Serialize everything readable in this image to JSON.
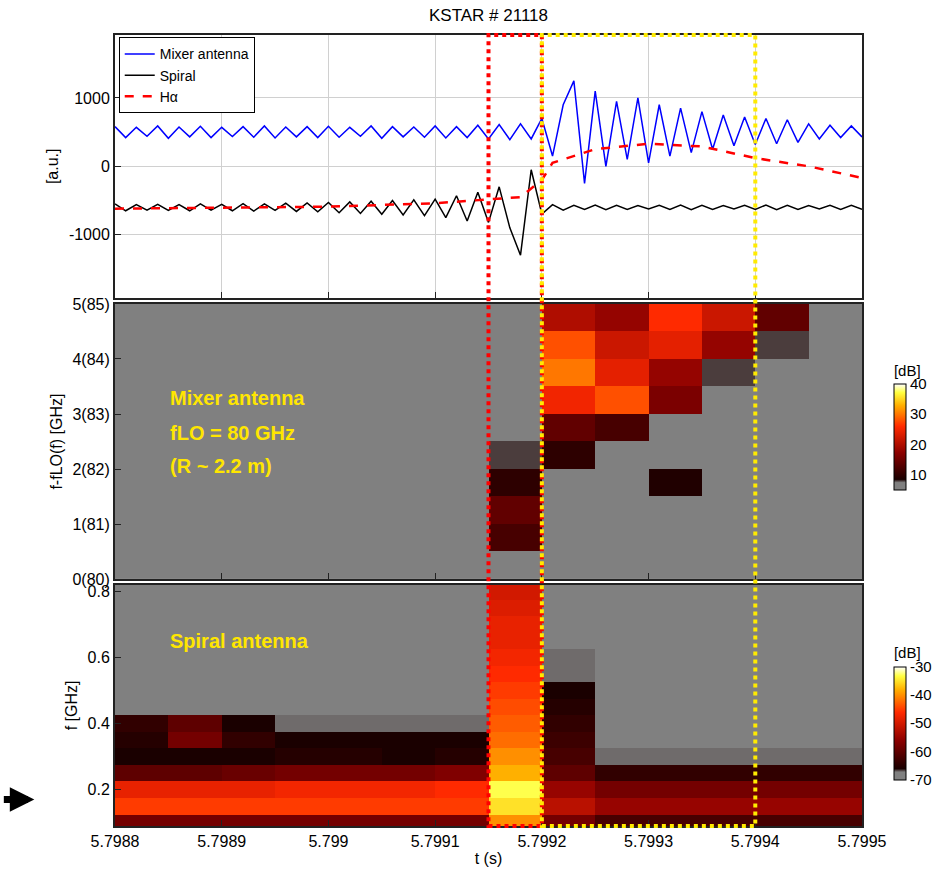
{
  "chart_data": [
    {
      "type": "line",
      "title": "KSTAR # 21118",
      "ylabel": "[a.u.]",
      "xlim": [
        5.7988,
        5.7995
      ],
      "xticks": [
        5.7988,
        5.7989,
        5.799,
        5.7991,
        5.7992,
        5.7993,
        5.7994,
        5.7995
      ],
      "ylim": [
        -1920,
        1920
      ],
      "yticks": [
        -1000,
        0,
        1000
      ],
      "grid": true,
      "legend": "top-left",
      "tick_labels": "y",
      "series": [
        {
          "name": "Mixer antenna",
          "color": "#0000ff",
          "line_style": "solid",
          "x": [
            5.7988,
            5.79881,
            5.79882,
            5.79883,
            5.79884,
            5.79885,
            5.79886,
            5.79887,
            5.79888,
            5.79889,
            5.7989,
            5.79891,
            5.79892,
            5.79893,
            5.79894,
            5.79895,
            5.79896,
            5.79897,
            5.79898,
            5.79899,
            5.799,
            5.79901,
            5.79902,
            5.79903,
            5.79904,
            5.79905,
            5.79906,
            5.79907,
            5.79908,
            5.79909,
            5.7991,
            5.79911,
            5.79912,
            5.79913,
            5.79914,
            5.79915,
            5.79916,
            5.79917,
            5.79918,
            5.79919,
            5.7992,
            5.79921,
            5.79922,
            5.79923,
            5.79924,
            5.79925,
            5.79926,
            5.79927,
            5.79928,
            5.79929,
            5.7993,
            5.79931,
            5.79932,
            5.79933,
            5.79934,
            5.79935,
            5.79936,
            5.79937,
            5.79938,
            5.79939,
            5.7994,
            5.79941,
            5.79942,
            5.79943,
            5.79944,
            5.79945,
            5.79946,
            5.79947,
            5.79948,
            5.79949,
            5.7995
          ],
          "values": [
            580,
            420,
            570,
            440,
            590,
            410,
            575,
            430,
            585,
            420,
            570,
            435,
            580,
            425,
            590,
            415,
            575,
            430,
            580,
            420,
            585,
            425,
            570,
            440,
            590,
            410,
            580,
            430,
            575,
            425,
            590,
            415,
            580,
            420,
            600,
            400,
            610,
            390,
            620,
            400,
            700,
            150,
            900,
            1250,
            -250,
            1100,
            0,
            950,
            100,
            1000,
            50,
            900,
            150,
            850,
            200,
            800,
            250,
            750,
            300,
            720,
            320,
            700,
            330,
            680,
            350,
            620,
            400,
            600,
            420,
            590,
            430
          ]
        },
        {
          "name": "Spiral",
          "color": "#000000",
          "line_style": "solid",
          "x": [
            5.7988,
            5.79881,
            5.79882,
            5.79883,
            5.79884,
            5.79885,
            5.79886,
            5.79887,
            5.79888,
            5.79889,
            5.7989,
            5.79891,
            5.79892,
            5.79893,
            5.79894,
            5.79895,
            5.79896,
            5.79897,
            5.79898,
            5.79899,
            5.799,
            5.79901,
            5.79902,
            5.79903,
            5.79904,
            5.79905,
            5.79906,
            5.79907,
            5.79908,
            5.79909,
            5.7991,
            5.79911,
            5.79912,
            5.79913,
            5.79914,
            5.79915,
            5.79916,
            5.79917,
            5.79918,
            5.79919,
            5.7992,
            5.79921,
            5.79922,
            5.79923,
            5.79924,
            5.79925,
            5.79926,
            5.79927,
            5.79928,
            5.79929,
            5.7993,
            5.79931,
            5.79932,
            5.79933,
            5.79934,
            5.79935,
            5.79936,
            5.79937,
            5.79938,
            5.79939,
            5.7994,
            5.79941,
            5.79942,
            5.79943,
            5.79944,
            5.79945,
            5.79946,
            5.79947,
            5.79948,
            5.79949,
            5.7995
          ],
          "values": [
            -550,
            -650,
            -560,
            -640,
            -555,
            -645,
            -560,
            -650,
            -550,
            -640,
            -555,
            -650,
            -545,
            -655,
            -550,
            -645,
            -540,
            -660,
            -535,
            -665,
            -530,
            -680,
            -520,
            -690,
            -510,
            -700,
            -500,
            -710,
            -490,
            -720,
            -480,
            -750,
            -430,
            -800,
            -380,
            -820,
            -300,
            -900,
            -1300,
            -50,
            -700,
            -560,
            -640,
            -570,
            -630,
            -565,
            -635,
            -570,
            -630,
            -575,
            -625,
            -570,
            -630,
            -565,
            -635,
            -570,
            -630,
            -575,
            -625,
            -570,
            -630,
            -565,
            -635,
            -570,
            -630,
            -575,
            -625,
            -570,
            -630,
            -570,
            -630
          ]
        },
        {
          "name": "Hα",
          "color": "#ff0000",
          "line_style": "dashed",
          "x": [
            5.7988,
            5.7989,
            5.799,
            5.7991,
            5.79915,
            5.79918,
            5.7992,
            5.79921,
            5.79925,
            5.7993,
            5.79935,
            5.7994,
            5.79945,
            5.7995
          ],
          "values": [
            -620,
            -610,
            -590,
            -540,
            -490,
            -450,
            -200,
            50,
            250,
            330,
            290,
            120,
            0,
            -170
          ]
        }
      ],
      "regions": [
        {
          "x0": 5.79915,
          "x1": 5.7992,
          "color": "#ff0000"
        },
        {
          "x0": 5.7992,
          "x1": 5.7994,
          "color": "#ffeb00"
        }
      ]
    },
    {
      "type": "heatmap",
      "ylabel": "f-fLO(f) [GHz]",
      "xlim": [
        5.7988,
        5.7995
      ],
      "xticks": [
        5.7988,
        5.7989,
        5.799,
        5.7991,
        5.7992,
        5.7993,
        5.7994,
        5.7995
      ],
      "ylim": [
        0,
        5
      ],
      "yticks": [
        {
          "value": 0,
          "label": "0(80)"
        },
        {
          "value": 1,
          "label": "1(81)"
        },
        {
          "value": 2,
          "label": "2(82)"
        },
        {
          "value": 3,
          "label": "3(83)"
        },
        {
          "value": 4,
          "label": "4(84)"
        },
        {
          "value": 5,
          "label": "5(85)"
        }
      ],
      "grid": true,
      "tick_labels": "y",
      "annotations": [
        {
          "x": 5.79885,
          "y": 3.3,
          "text": "Mixer antenna",
          "color": "#ffe600"
        },
        {
          "x": 5.79885,
          "y": 2.65,
          "text": "fLO = 80 GHz",
          "color": "#ffe600"
        },
        {
          "x": 5.79885,
          "y": 2.05,
          "text": "(R ~ 2.2 m)",
          "color": "#ffe600"
        }
      ],
      "colorbar": {
        "title": "[dB]",
        "range": [
          5,
          40
        ],
        "ticks": [
          10,
          20,
          30,
          40
        ]
      },
      "x": [
        5.798825,
        5.798875,
        5.798925,
        5.798975,
        5.799025,
        5.799075,
        5.799125,
        5.799175,
        5.799225,
        5.799275,
        5.799325,
        5.799375,
        5.799425,
        5.799475
      ],
      "y": [
        0.25,
        0.75,
        1.25,
        1.75,
        2.25,
        2.75,
        3.25,
        3.75,
        4.25,
        4.75
      ],
      "z": [
        [
          5,
          5,
          5,
          5,
          5,
          5,
          5,
          5,
          5,
          5,
          5,
          5,
          5,
          5
        ],
        [
          5,
          5,
          5,
          5,
          5,
          5,
          5,
          12,
          5,
          5,
          5,
          5,
          5,
          5
        ],
        [
          5,
          5,
          5,
          5,
          5,
          5,
          5,
          14,
          5,
          5,
          5,
          5,
          5,
          5
        ],
        [
          5,
          5,
          5,
          5,
          5,
          5,
          5,
          10,
          5,
          5,
          9,
          5,
          5,
          5
        ],
        [
          5,
          5,
          5,
          5,
          5,
          5,
          5,
          8,
          10,
          5,
          5,
          5,
          5,
          5
        ],
        [
          5,
          5,
          5,
          5,
          5,
          5,
          5,
          7,
          14,
          12,
          5,
          5,
          5,
          5
        ],
        [
          5,
          5,
          5,
          5,
          5,
          5,
          5,
          6,
          25,
          28,
          16,
          5,
          5,
          5
        ],
        [
          5,
          5,
          5,
          5,
          5,
          5,
          5,
          6,
          30,
          24,
          18,
          8,
          5,
          5
        ],
        [
          5,
          5,
          5,
          5,
          5,
          5,
          5,
          5,
          28,
          22,
          24,
          18,
          8,
          5
        ],
        [
          5,
          5,
          5,
          5,
          5,
          5,
          5,
          5,
          20,
          18,
          26,
          22,
          14,
          6
        ]
      ]
    },
    {
      "type": "heatmap",
      "ylabel": "f [GHz]",
      "xlabel": "t (s)",
      "xlim": [
        5.7988,
        5.7995
      ],
      "xticks": [
        5.7988,
        5.7989,
        5.799,
        5.7991,
        5.7992,
        5.7993,
        5.7994,
        5.7995
      ],
      "ylim": [
        0.09,
        0.82
      ],
      "yticks": [
        0.2,
        0.4,
        0.6,
        0.8
      ],
      "grid": true,
      "annotations": [
        {
          "x": 5.79885,
          "y": 0.65,
          "text": "Spiral antenna",
          "color": "#ffe600"
        }
      ],
      "arrow": {
        "y": 0.17
      },
      "colorbar": {
        "title": "[dB]",
        "range": [
          -70,
          -30
        ],
        "ticks": [
          -70,
          -60,
          -50,
          -40,
          -30
        ]
      },
      "x": [
        5.798825,
        5.798875,
        5.798925,
        5.798975,
        5.799025,
        5.799075,
        5.799125,
        5.799175,
        5.799225,
        5.799275,
        5.799325,
        5.799375,
        5.799425,
        5.799475
      ],
      "y": [
        0.1,
        0.15,
        0.2,
        0.25,
        0.3,
        0.35,
        0.4,
        0.45,
        0.5,
        0.55,
        0.6,
        0.65,
        0.7,
        0.75,
        0.8
      ],
      "z": [
        [
          -58,
          -58,
          -58,
          -58,
          -58,
          -58,
          -58,
          -40,
          -58,
          -62,
          -62,
          -62,
          -62,
          -62
        ],
        [
          -45,
          -45,
          -45,
          -45,
          -45,
          -45,
          -45,
          -35,
          -52,
          -55,
          -55,
          -55,
          -55,
          -55
        ],
        [
          -48,
          -48,
          -48,
          -47,
          -47,
          -47,
          -46,
          -33,
          -55,
          -58,
          -58,
          -58,
          -58,
          -58
        ],
        [
          -60,
          -60,
          -59,
          -58,
          -58,
          -58,
          -57,
          -38,
          -60,
          -64,
          -64,
          -64,
          -64,
          -64
        ],
        [
          -66,
          -66,
          -66,
          -65,
          -65,
          -66,
          -65,
          -40,
          -62,
          -67,
          -67,
          -67,
          -67,
          -67
        ],
        [
          -65,
          -58,
          -64,
          -66,
          -66,
          -66,
          -66,
          -42,
          -63,
          -68,
          -68,
          -68,
          -68,
          -68
        ],
        [
          -64,
          -60,
          -66,
          -67,
          -67,
          -67,
          -67,
          -43,
          -64,
          -68,
          -68,
          -68,
          -68,
          -68
        ],
        [
          -69,
          -68,
          -69,
          -69,
          -68,
          -69,
          -69,
          -44,
          -65,
          -69,
          -69,
          -69,
          -69,
          -69
        ],
        [
          -69,
          -69,
          -69,
          -69,
          -69,
          -69,
          -69,
          -45,
          -66,
          -69,
          -69,
          -69,
          -69,
          -69
        ],
        [
          -69,
          -69,
          -69,
          -69,
          -69,
          -69,
          -69,
          -46,
          -67,
          -69,
          -69,
          -69,
          -69,
          -69
        ],
        [
          -69,
          -69,
          -69,
          -69,
          -69,
          -69,
          -69,
          -47,
          -67,
          -69,
          -69,
          -69,
          -69,
          -69
        ],
        [
          -69,
          -69,
          -69,
          -69,
          -69,
          -69,
          -69,
          -48,
          -69,
          -69,
          -69,
          -69,
          -69,
          -69
        ],
        [
          -69,
          -69,
          -69,
          -69,
          -69,
          -69,
          -69,
          -48,
          -69,
          -69,
          -69,
          -69,
          -69,
          -69
        ],
        [
          -69,
          -69,
          -69,
          -69,
          -69,
          -69,
          -69,
          -49,
          -69,
          -69,
          -69,
          -69,
          -69,
          -69
        ],
        [
          -69,
          -69,
          -69,
          -69,
          -69,
          -69,
          -69,
          -50,
          -69,
          -69,
          -69,
          -69,
          -69,
          -69
        ]
      ]
    }
  ]
}
